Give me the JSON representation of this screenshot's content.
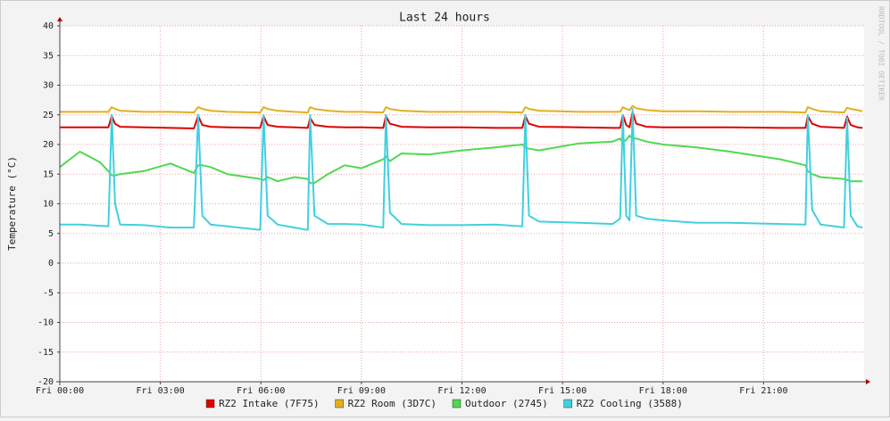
{
  "chart_data": {
    "type": "line",
    "title": "Last 24 hours",
    "y_label": "Temperature (°C)",
    "watermark": "RRDTOOL / TOBI OETIKER",
    "x": [
      0,
      0.6,
      1.2,
      1.45,
      1.55,
      1.65,
      1.8,
      2.5,
      3.3,
      4.0,
      4.13,
      4.25,
      4.5,
      5.0,
      5.98,
      6.08,
      6.2,
      6.5,
      7.0,
      7.4,
      7.47,
      7.6,
      8.0,
      8.5,
      9.0,
      9.65,
      9.73,
      9.85,
      10.2,
      11,
      12,
      13,
      13.8,
      13.89,
      14.0,
      14.3,
      15.5,
      16.5,
      16.72,
      16.8,
      16.9,
      17.0,
      17.09,
      17.2,
      17.5,
      18,
      19,
      20,
      21.5,
      22.25,
      22.32,
      22.45,
      22.7,
      23.4,
      23.49,
      23.6,
      23.8,
      23.95
    ],
    "series": [
      {
        "name": "RZ2 Intake (7F75)",
        "color": "#e00000",
        "values": [
          22.9,
          22.9,
          22.9,
          22.9,
          24.8,
          23.5,
          23.0,
          22.9,
          22.8,
          22.7,
          24.8,
          23.3,
          23.0,
          22.9,
          22.8,
          24.8,
          23.3,
          23.0,
          22.9,
          22.8,
          24.5,
          23.3,
          23.0,
          22.9,
          22.9,
          22.8,
          24.8,
          23.5,
          23.0,
          22.9,
          22.9,
          22.8,
          22.8,
          24.8,
          23.5,
          23.0,
          22.9,
          22.8,
          22.8,
          25.0,
          23.3,
          22.9,
          25.5,
          23.5,
          23.0,
          22.9,
          22.9,
          22.9,
          22.8,
          22.8,
          24.8,
          23.5,
          23.0,
          22.8,
          24.7,
          23.3,
          22.9,
          22.8
        ]
      },
      {
        "name": "RZ2 Room (3D7C)",
        "color": "#e0b020",
        "values": [
          25.5,
          25.5,
          25.5,
          25.5,
          26.3,
          26.0,
          25.7,
          25.5,
          25.5,
          25.4,
          26.3,
          26.0,
          25.7,
          25.5,
          25.4,
          26.3,
          26.0,
          25.7,
          25.5,
          25.4,
          26.3,
          26.0,
          25.7,
          25.5,
          25.5,
          25.4,
          26.3,
          26.0,
          25.7,
          25.5,
          25.5,
          25.5,
          25.4,
          26.3,
          26.0,
          25.7,
          25.5,
          25.5,
          25.5,
          26.3,
          26.0,
          25.8,
          26.5,
          26.1,
          25.8,
          25.6,
          25.6,
          25.5,
          25.5,
          25.4,
          26.3,
          26.0,
          25.6,
          25.4,
          26.2,
          26.0,
          25.8,
          25.6
        ]
      },
      {
        "name": "Outdoor (2745)",
        "color": "#50d850",
        "values": [
          16.2,
          18.8,
          17.0,
          15.5,
          14.8,
          14.8,
          15.0,
          15.5,
          16.8,
          15.2,
          16.5,
          16.5,
          16.2,
          15.0,
          14.2,
          14.0,
          14.5,
          13.8,
          14.5,
          14.2,
          13.5,
          13.5,
          15.0,
          16.5,
          16.0,
          17.5,
          18.0,
          17.2,
          18.5,
          18.3,
          19.0,
          19.5,
          20.0,
          19.5,
          19.3,
          19.0,
          20.2,
          20.5,
          21.0,
          20.3,
          20.8,
          21.5,
          21.0,
          21.0,
          20.5,
          20.0,
          19.5,
          18.8,
          17.5,
          16.5,
          15.5,
          15.0,
          14.5,
          14.2,
          14.0,
          13.8,
          13.8,
          13.8
        ]
      },
      {
        "name": "RZ2 Cooling (3588)",
        "color": "#40d0e0",
        "values": [
          6.5,
          6.5,
          6.3,
          6.2,
          25,
          10,
          6.5,
          6.4,
          6.0,
          6.0,
          25,
          8,
          6.5,
          6.2,
          5.6,
          25,
          8,
          6.5,
          6.0,
          5.6,
          25,
          8,
          6.6,
          6.6,
          6.5,
          6.0,
          25,
          8.5,
          6.6,
          6.4,
          6.4,
          6.5,
          6.2,
          25,
          8,
          7.0,
          6.8,
          6.6,
          7.5,
          25,
          8,
          7.2,
          26,
          8,
          7.5,
          7.2,
          6.8,
          6.8,
          6.6,
          6.5,
          25,
          9,
          6.5,
          6.0,
          24.5,
          8,
          6.2,
          6.0
        ]
      }
    ],
    "xlim": [
      0,
      24
    ],
    "xticks": [
      {
        "value": 0,
        "label": "Fri 00:00"
      },
      {
        "value": 3,
        "label": "Fri 03:00"
      },
      {
        "value": 6,
        "label": "Fri 06:00"
      },
      {
        "value": 9,
        "label": "Fri 09:00"
      },
      {
        "value": 12,
        "label": "Fri 12:00"
      },
      {
        "value": 15,
        "label": "Fri 15:00"
      },
      {
        "value": 18,
        "label": "Fri 18:00"
      },
      {
        "value": 21,
        "label": "Fri 21:00"
      }
    ],
    "ylim": [
      -20,
      40
    ],
    "yticks": [
      -20,
      -15,
      -10,
      -5,
      0,
      5,
      10,
      15,
      20,
      25,
      30,
      35,
      40
    ],
    "grid": true,
    "legend": "bottom"
  }
}
